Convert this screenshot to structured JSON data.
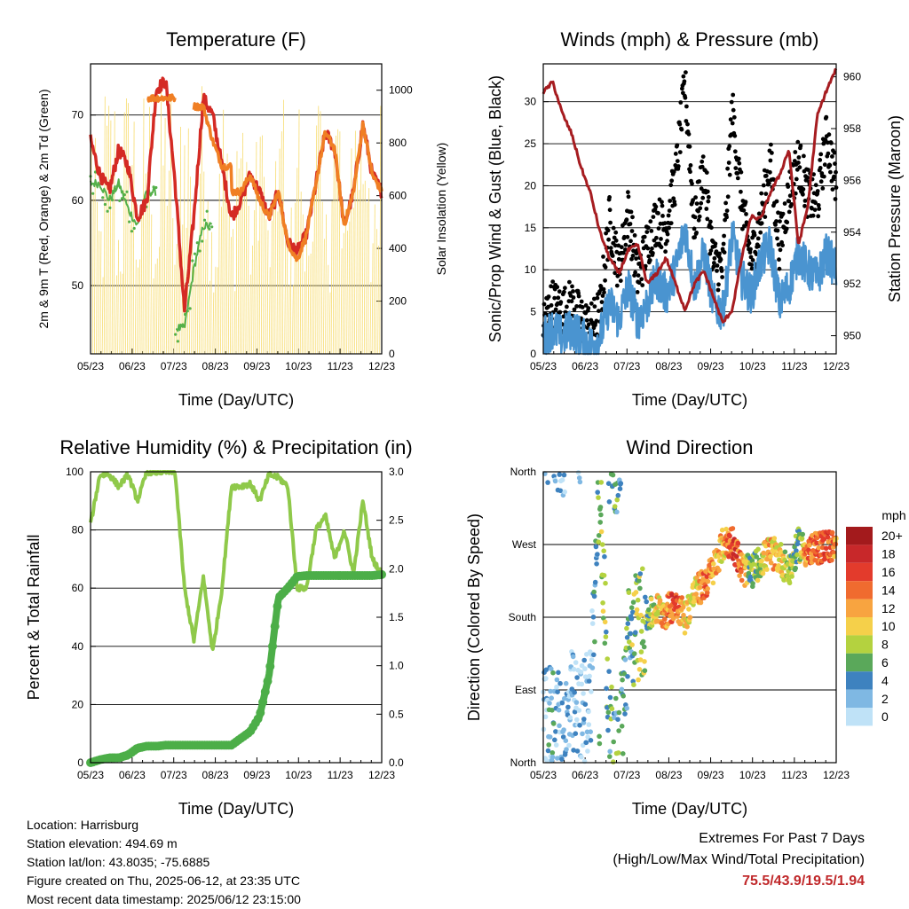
{
  "x_ticks": [
    "05/23",
    "06/23",
    "07/23",
    "08/23",
    "09/23",
    "10/23",
    "11/23",
    "12/23"
  ],
  "charts": {
    "temperature": {
      "title": "Temperature (F)",
      "xlabel": "Time (Day/UTC)",
      "ylabel_left": "2m & 9m T (Red, Orange) & 2m Td (Green)",
      "ylabel_right": "Solar Insolation (Yellow)",
      "yticks_left": [
        "50",
        "60",
        "70"
      ],
      "yticks_right": [
        "0",
        "200",
        "400",
        "600",
        "800",
        "1000"
      ]
    },
    "winds": {
      "title": "Winds (mph) & Pressure (mb)",
      "xlabel": "Time (Day/UTC)",
      "ylabel_left": "Sonic/Prop Wind & Gust (Blue, Black)",
      "ylabel_right": "Station Pressure (Maroon)",
      "yticks_left": [
        "0",
        "5",
        "10",
        "15",
        "20",
        "25",
        "30"
      ],
      "yticks_right": [
        "950",
        "952",
        "954",
        "956",
        "958",
        "960"
      ]
    },
    "humidity": {
      "title": "Relative Humidity (%) & Precipitation (in)",
      "xlabel": "Time (Day/UTC)",
      "ylabel_left": "Percent & Total Rainfall",
      "yticks_left": [
        "0",
        "20",
        "40",
        "60",
        "80",
        "100"
      ],
      "yticks_right": [
        "0.0",
        "0.5",
        "1.0",
        "1.5",
        "2.0",
        "2.5",
        "3.0"
      ]
    },
    "direction": {
      "title": "Wind Direction",
      "xlabel": "Time (Day/UTC)",
      "ylabel_left": "Direction (Colored By Speed)",
      "yticks_left": [
        "North",
        "East",
        "South",
        "West",
        "North"
      ],
      "legend_title": "mph",
      "legend_labels": [
        "20+",
        "18",
        "16",
        "14",
        "12",
        "10",
        "8",
        "6",
        "4",
        "2",
        "0"
      ],
      "legend_colors": [
        "#a31a1c",
        "#c8282a",
        "#e33b2c",
        "#f06b2f",
        "#f8a440",
        "#f5d04a",
        "#b4d23f",
        "#5aa85a",
        "#3e82bf",
        "#7fb8e3",
        "#bfe2f7"
      ]
    }
  },
  "chart_data": [
    {
      "type": "line",
      "title": "Temperature (F)",
      "xlabel": "Time (Day/UTC)",
      "ylabel": "2m & 9m T (Red, Orange) & 2m Td (Green)",
      "ylabel_right": "Solar Insolation (Yellow)",
      "ylim": [
        42,
        76
      ],
      "ylim_right": [
        0,
        1100
      ],
      "x": [
        "05/23",
        "05/30",
        "06/06",
        "06/13",
        "06/20",
        "06/27",
        "07/04",
        "07/11",
        "07/18",
        "07/25",
        "08/01",
        "08/08",
        "08/15",
        "08/22",
        "08/29",
        "09/05",
        "09/12",
        "09/19",
        "09/26",
        "10/03",
        "10/10",
        "10/17",
        "10/24",
        "10/31",
        "11/07",
        "11/14",
        "11/21",
        "11/28",
        "12/05",
        "12/12",
        "12/19",
        "12/23"
      ],
      "series": [
        {
          "name": "2m T",
          "values": [
            67,
            63,
            61,
            66,
            64,
            58,
            60,
            73,
            74,
            62,
            47,
            58,
            72,
            70,
            64,
            58,
            60,
            63,
            61,
            58,
            61,
            55,
            54,
            56,
            62,
            68,
            66,
            57,
            61,
            69,
            63,
            61
          ]
        },
        {
          "name": "9m T",
          "values": [
            null,
            null,
            null,
            null,
            null,
            null,
            null,
            72,
            72,
            null,
            null,
            null,
            71,
            67,
            64,
            null,
            61,
            63,
            60,
            58,
            61,
            55,
            53,
            56,
            62,
            68,
            66,
            57,
            61,
            69,
            63,
            61
          ]
        },
        {
          "name": "2m Td",
          "values": [
            62,
            62,
            60,
            62,
            59,
            57,
            61,
            null,
            null,
            null,
            45,
            52,
            57,
            null,
            null,
            null,
            null,
            null,
            null,
            null,
            null,
            null,
            null,
            null,
            null,
            null,
            null,
            null,
            null,
            null,
            null,
            null
          ]
        },
        {
          "name": "Solar Insolation",
          "values": [
            1000,
            0,
            980,
            0,
            1050,
            0,
            900,
            0,
            1000,
            0,
            950,
            0,
            1000,
            0,
            900,
            0,
            950,
            0,
            850,
            0,
            900,
            0,
            800,
            0,
            900,
            0,
            850,
            0,
            950,
            1050,
            0,
            650
          ]
        }
      ]
    },
    {
      "type": "line",
      "title": "Winds (mph) & Pressure (mb)",
      "xlabel": "Time (Day/UTC)",
      "ylabel": "Sonic/Prop Wind & Gust (Blue, Black)",
      "ylabel_right": "Station Pressure (Maroon)",
      "ylim": [
        0,
        34.5
      ],
      "ylim_right": [
        949.3,
        960.5
      ],
      "x": [
        "05/23",
        "05/30",
        "06/06",
        "06/13",
        "06/20",
        "06/27",
        "07/04",
        "07/11",
        "07/18",
        "07/25",
        "08/01",
        "08/08",
        "08/15",
        "08/22",
        "08/29",
        "09/05",
        "09/12",
        "09/19",
        "09/26",
        "10/03",
        "10/10",
        "10/17",
        "10/24",
        "10/31",
        "11/07",
        "11/14",
        "11/21",
        "11/28",
        "12/05",
        "12/12",
        "12/19",
        "12/23"
      ],
      "series": [
        {
          "name": "Sonic/Prop Wind",
          "values": [
            2,
            3,
            2,
            3,
            2,
            1,
            2,
            6,
            4,
            8,
            4,
            6,
            9,
            7,
            10,
            15,
            8,
            12,
            6,
            5,
            14,
            9,
            7,
            11,
            13,
            6,
            8,
            12,
            10,
            9,
            12,
            10
          ]
        },
        {
          "name": "Gust",
          "values": [
            4,
            6,
            5,
            6,
            4,
            3,
            5,
            16,
            10,
            17,
            9,
            13,
            16,
            15,
            21,
            32,
            15,
            22,
            11,
            10,
            29,
            18,
            11,
            16,
            23,
            13,
            19,
            23,
            19,
            18,
            26,
            20
          ]
        },
        {
          "name": "Station Pressure",
          "values": [
            959.4,
            959.8,
            958.6,
            957.8,
            956.5,
            955.5,
            954.0,
            953.0,
            952.4,
            953.3,
            953.5,
            952.0,
            952.4,
            953.0,
            952.0,
            951.0,
            952.0,
            952.5,
            951.5,
            950.5,
            951.0,
            953.0,
            954.6,
            954.5,
            955.5,
            956.2,
            957.2,
            953.5,
            955.0,
            958.5,
            959.5,
            960.3
          ]
        }
      ]
    },
    {
      "type": "line",
      "title": "Relative Humidity (%) & Precipitation (in)",
      "xlabel": "Time (Day/UTC)",
      "ylabel": "Percent & Total Rainfall",
      "ylim": [
        0,
        100
      ],
      "ylim_right": [
        0,
        3.0
      ],
      "x": [
        "05/23",
        "05/30",
        "06/06",
        "06/13",
        "06/20",
        "06/27",
        "07/04",
        "07/11",
        "07/18",
        "07/25",
        "08/01",
        "08/08",
        "08/15",
        "08/22",
        "08/29",
        "09/05",
        "09/12",
        "09/19",
        "09/26",
        "10/03",
        "10/10",
        "10/17",
        "10/24",
        "10/31",
        "11/07",
        "11/14",
        "11/21",
        "11/28",
        "12/05",
        "12/12",
        "12/19",
        "12/23"
      ],
      "series": [
        {
          "name": "Relative Humidity",
          "values": [
            82,
            99,
            99,
            95,
            99,
            90,
            100,
            100,
            100,
            100,
            60,
            42,
            64,
            38,
            60,
            95,
            95,
            96,
            90,
            99,
            98,
            95,
            60,
            60,
            80,
            85,
            70,
            80,
            65,
            90,
            70,
            65
          ]
        },
        {
          "name": "Total Rainfall",
          "values": [
            0.0,
            0.03,
            0.05,
            0.05,
            0.08,
            0.15,
            0.17,
            0.17,
            0.18,
            0.18,
            0.18,
            0.18,
            0.18,
            0.18,
            0.18,
            0.18,
            0.25,
            0.32,
            0.48,
            0.9,
            1.7,
            1.8,
            1.92,
            1.93,
            1.93,
            1.93,
            1.93,
            1.93,
            1.93,
            1.93,
            1.93,
            1.94
          ]
        }
      ]
    },
    {
      "type": "scatter",
      "title": "Wind Direction",
      "xlabel": "Time (Day/UTC)",
      "ylabel": "Direction (Colored By Speed)",
      "ylim": [
        0,
        360
      ],
      "yticks": [
        "North",
        "East",
        "South",
        "West",
        "North"
      ],
      "legend_title": "mph",
      "x": [
        "05/23",
        "05/30",
        "06/06",
        "06/13",
        "06/20",
        "06/27",
        "07/04",
        "07/11",
        "07/18",
        "07/25",
        "08/01",
        "08/08",
        "08/15",
        "08/22",
        "08/29",
        "09/05",
        "09/12",
        "09/19",
        "09/26",
        "10/03",
        "10/10",
        "10/17",
        "10/24",
        "10/31",
        "11/07",
        "11/14",
        "11/21",
        "11/28",
        "12/05",
        "12/12",
        "12/19",
        "12/23"
      ],
      "direction_deg": [
        40,
        60,
        30,
        70,
        50,
        90,
        350,
        30,
        10,
        150,
        170,
        180,
        190,
        185,
        200,
        180,
        210,
        220,
        240,
        270,
        275,
        240,
        235,
        250,
        260,
        255,
        235,
        270,
        260,
        265,
        270,
        265
      ],
      "speed_mph": [
        2,
        3,
        2,
        2,
        2,
        1,
        8,
        6,
        4,
        5,
        8,
        6,
        10,
        12,
        16,
        10,
        10,
        14,
        12,
        10,
        16,
        14,
        6,
        8,
        12,
        10,
        8,
        6,
        14,
        14,
        16,
        12
      ]
    }
  ],
  "info": {
    "location": "Location: Harrisburg",
    "elevation": "Station elevation: 494.69 m",
    "latlon": "Station lat/lon: 43.8035; -75.6885",
    "created": "Figure created on Thu, 2025-06-12, at 23:35 UTC",
    "recent": "Most recent data timestamp: 2025/06/12 23:15:00"
  },
  "extremes": {
    "line1": "Extremes For Past 7 Days",
    "line2": "(High/Low/Max Wind/Total Precipitation)",
    "values": "75.5/43.9/19.5/1.94"
  }
}
